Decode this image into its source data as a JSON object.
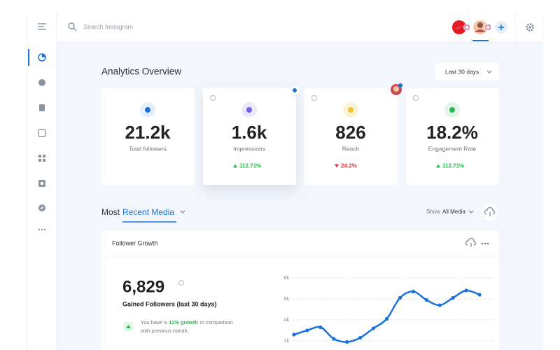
{
  "topbar": {
    "search_placeholder": "Search Instagram"
  },
  "header": {
    "title": "Analytics Overview",
    "date_range": "Last 30 days"
  },
  "cards": [
    {
      "value": "21.2k",
      "label": "Total followers"
    },
    {
      "value": "1.6k",
      "label": "Impressions",
      "change": "112.71%",
      "direction": "up"
    },
    {
      "value": "826",
      "label": "Reach",
      "change": "24.2%",
      "direction": "down"
    },
    {
      "value": "18.2%",
      "label": "Engagement Rate",
      "change": "112.71%",
      "direction": "up"
    }
  ],
  "media": {
    "prefix": "Most",
    "highlight": "Recent Media",
    "filter_prefix": "Show",
    "filter_value": "All Media"
  },
  "panel": {
    "title": "Follower Growth",
    "total": "6,829",
    "total_label": "Gained Followers (last 30 days)",
    "note": {
      "prefix": "You have a",
      "highlight": "11% growth",
      "suffix": "in comparison",
      "line2": "with previous month."
    }
  },
  "chart_data": {
    "type": "line",
    "categories": [
      null,
      null,
      null,
      null,
      null,
      null,
      null,
      null,
      null,
      null,
      null,
      null,
      null,
      null,
      null
    ],
    "values": [
      2600,
      3000,
      3300,
      2200,
      1900,
      2300,
      3200,
      4100,
      6100,
      6700,
      5900,
      5400,
      6100,
      6800,
      6400
    ],
    "color": "#1a73d9",
    "ylim": [
      1200,
      8000
    ],
    "yticks": [
      {
        "value": 2000,
        "label": "2k"
      },
      {
        "value": 4000,
        "label": "4k"
      },
      {
        "value": 6000,
        "label": "6k"
      },
      {
        "value": 8000,
        "label": "8k"
      }
    ],
    "grid": true
  }
}
